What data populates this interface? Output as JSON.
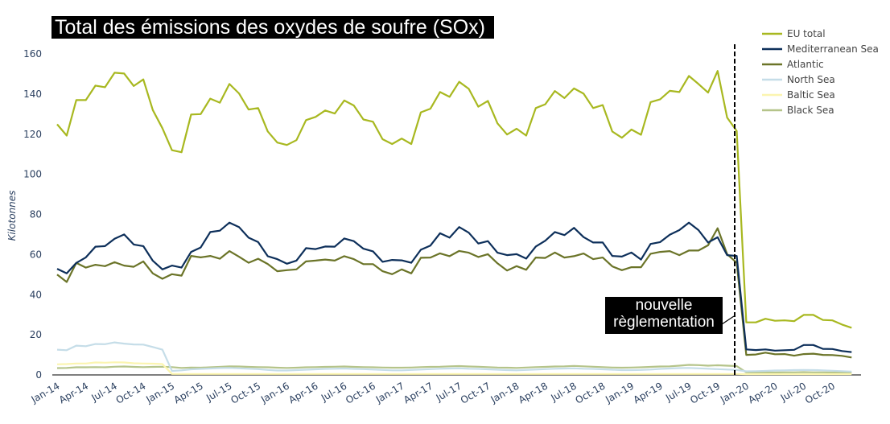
{
  "chart_data": {
    "type": "line",
    "title": "Total des émissions des oxydes de soufre (SOx)",
    "xlabel": "",
    "ylabel": "Kilotonnes",
    "ylim": [
      0,
      160
    ],
    "yticks": [
      0,
      20,
      40,
      60,
      80,
      100,
      120,
      140,
      160
    ],
    "x_tick_labels": [
      "Jan-14",
      "Apr-14",
      "Jul-14",
      "Oct-14",
      "Jan-15",
      "Apr-15",
      "Jul-15",
      "Oct-15",
      "Jan-16",
      "Apr-16",
      "Jul-16",
      "Oct-16",
      "Jan-17",
      "Apr-17",
      "Jul-17",
      "Oct-17",
      "Jan-18",
      "Apr-18",
      "Jul-18",
      "Oct-18",
      "Jan-19",
      "Apr-19",
      "Jul-19",
      "Oct-19",
      "Jan-20",
      "Apr-20",
      "Jul-20",
      "Oct-20"
    ],
    "x_range": "Jan-14 to Dec-20 (monthly)",
    "grid": false,
    "legend_position": "top-right",
    "annotation": {
      "text_line1": "nouvelle",
      "text_line2": "règlementation",
      "at": "between Dec-19 and Jan-20"
    },
    "series": [
      {
        "name": "EU total",
        "color": "#a8b820",
        "values": [
          124.9,
          119.3,
          137,
          137,
          144.2,
          143.4,
          150.6,
          150.2,
          144,
          147.3,
          132,
          123,
          112,
          111,
          129.8,
          130,
          137.7,
          135.7,
          145,
          140.3,
          132.3,
          133,
          121.4,
          115.8,
          114.6,
          117,
          127,
          128.6,
          131.8,
          130.3,
          136.8,
          134.3,
          127.3,
          126.2,
          117.5,
          115.1,
          117.8,
          115.1,
          130.9,
          132.7,
          141,
          138.6,
          146.1,
          142.6,
          133.7,
          136.6,
          125.4,
          119.8,
          122.7,
          119.3,
          133,
          134.9,
          141.5,
          138,
          142.8,
          140.2,
          133,
          134.5,
          121.3,
          118.2,
          122.3,
          119.7,
          136,
          137.4,
          141.6,
          141,
          149,
          145,
          140.7,
          151.5,
          128.3,
          121.6,
          26.2,
          26.2,
          28,
          27,
          27.2,
          26.8,
          29.9,
          29.9,
          27.4,
          27.2,
          25.1,
          23.5
        ]
      },
      {
        "name": "Mediterranean Sea",
        "color": "#0d2f5a",
        "values": [
          52.9,
          50.6,
          55.8,
          58.6,
          63.9,
          64.2,
          67.9,
          70,
          65,
          64.2,
          56.9,
          52.6,
          54.5,
          53.5,
          61.3,
          63.5,
          71.2,
          71.9,
          75.9,
          73.7,
          68.4,
          66.2,
          59.2,
          57.7,
          55.4,
          57,
          63.2,
          62.7,
          64,
          63.9,
          68,
          66.7,
          62.9,
          61.6,
          56.4,
          57.3,
          57.1,
          55.9,
          62.4,
          64.5,
          70.6,
          68.4,
          73.7,
          70.9,
          65.5,
          66.7,
          60.9,
          59.7,
          60.2,
          58,
          64,
          66.9,
          71.2,
          69.7,
          73.3,
          68.7,
          66,
          66,
          59.3,
          59,
          61,
          57.5,
          65.3,
          66.2,
          69.9,
          72.2,
          75.9,
          72.2,
          66,
          68.6,
          59.7,
          59.3,
          12.7,
          12.4,
          12.7,
          12.1,
          12.3,
          12.5,
          14.9,
          14.9,
          13,
          12.9,
          11.9,
          11.4
        ]
      },
      {
        "name": "Atlantic",
        "color": "#6b7428",
        "values": [
          50,
          46.3,
          55.8,
          53.5,
          54.9,
          54.2,
          56.2,
          54.5,
          53.9,
          56.6,
          50.6,
          47.9,
          50.2,
          49.5,
          59.3,
          58.6,
          59.3,
          57.9,
          61.7,
          58.9,
          55.9,
          57.9,
          55.3,
          51.7,
          52.2,
          52.6,
          56.6,
          57,
          57.5,
          57,
          59.2,
          57.7,
          55.2,
          55.2,
          51.7,
          50.2,
          52.6,
          50.6,
          58.4,
          58.5,
          60.6,
          59.2,
          61.8,
          60.9,
          58.8,
          60.2,
          55.6,
          52,
          54.2,
          52.4,
          58.5,
          58.3,
          61,
          58.5,
          59.2,
          60.5,
          57.7,
          58.5,
          54.1,
          52.2,
          53.7,
          53.7,
          60.4,
          61.3,
          61.7,
          59.7,
          62,
          62,
          64.6,
          73.1,
          60.2,
          55.9,
          10,
          10.2,
          11.1,
          10.3,
          10.4,
          9.6,
          10.4,
          10.6,
          10,
          9.9,
          9.5,
          8.7
        ]
      },
      {
        "name": "North Sea",
        "color": "#c5dde8",
        "values": [
          12.6,
          12.3,
          14.6,
          14.3,
          15.4,
          15.3,
          16.2,
          15.6,
          15.2,
          15.1,
          13.9,
          12.6,
          2.0,
          2.3,
          2.8,
          3.0,
          3.2,
          3.4,
          3.5,
          3.3,
          3.1,
          2.9,
          2.5,
          2.2,
          2.2,
          2.4,
          2.6,
          2.8,
          3.0,
          3.1,
          3.2,
          3.0,
          2.9,
          2.7,
          2.5,
          2.3,
          2.3,
          2.5,
          2.7,
          2.9,
          3.1,
          3.2,
          3.3,
          3.1,
          3.0,
          2.8,
          2.6,
          2.4,
          2.3,
          2.5,
          2.7,
          2.9,
          3.1,
          3.2,
          3.3,
          3.1,
          3.0,
          2.8,
          2.6,
          2.4,
          2.4,
          2.5,
          2.7,
          3.0,
          3.2,
          3.4,
          3.5,
          3.3,
          3.1,
          2.9,
          2.7,
          2.5,
          1.8,
          1.9,
          2.0,
          2.2,
          2.3,
          2.4,
          2.5,
          2.4,
          2.3,
          2.1,
          1.9,
          1.7
        ]
      },
      {
        "name": "Baltic Sea",
        "color": "#fbf5b0",
        "values": [
          5.3,
          5.4,
          5.7,
          5.7,
          6.2,
          6.1,
          6.3,
          6.2,
          5.8,
          5.7,
          5.6,
          5.4,
          0.5,
          0.5,
          0.5,
          0.5,
          0.5,
          0.5,
          0.5,
          0.5,
          0.5,
          0.5,
          0.5,
          0.5,
          0.5,
          0.5,
          0.5,
          0.5,
          0.5,
          0.5,
          0.5,
          0.5,
          0.5,
          0.5,
          0.5,
          0.5,
          0.5,
          0.5,
          0.5,
          0.5,
          0.5,
          0.5,
          0.5,
          0.5,
          0.5,
          0.5,
          0.5,
          0.5,
          0.5,
          0.5,
          0.5,
          0.5,
          0.5,
          0.5,
          0.5,
          0.5,
          0.5,
          0.5,
          0.5,
          0.5,
          0.5,
          0.5,
          0.5,
          0.5,
          0.5,
          0.5,
          0.5,
          0.5,
          0.5,
          0.5,
          0.5,
          0.5,
          0.4,
          0.4,
          0.4,
          0.4,
          0.4,
          0.4,
          0.4,
          0.4,
          0.4,
          0.4,
          0.4,
          0.4
        ]
      },
      {
        "name": "Black Sea",
        "color": "#b5c48a",
        "values": [
          3.4,
          3.5,
          3.8,
          3.8,
          3.9,
          3.8,
          4.1,
          4.2,
          4.0,
          3.9,
          4.0,
          4.1,
          3.9,
          3.5,
          3.7,
          3.6,
          3.8,
          4.0,
          4.3,
          4.2,
          4.0,
          3.9,
          3.8,
          3.6,
          3.5,
          3.6,
          3.8,
          3.9,
          4.0,
          4.1,
          4.2,
          4.0,
          3.9,
          3.8,
          3.7,
          3.6,
          3.6,
          3.7,
          3.9,
          4.0,
          4.1,
          4.3,
          4.4,
          4.2,
          4.1,
          3.9,
          3.7,
          3.6,
          3.5,
          3.7,
          3.9,
          4.0,
          4.2,
          4.3,
          4.5,
          4.3,
          4.1,
          3.9,
          3.7,
          3.6,
          3.7,
          3.8,
          4.0,
          4.2,
          4.3,
          4.6,
          5.0,
          4.9,
          4.6,
          4.8,
          4.6,
          4.4,
          1.3,
          1.2,
          1.3,
          1.2,
          1.3,
          1.3,
          1.4,
          1.3,
          1.3,
          1.2,
          1.2,
          1.1
        ]
      }
    ]
  }
}
